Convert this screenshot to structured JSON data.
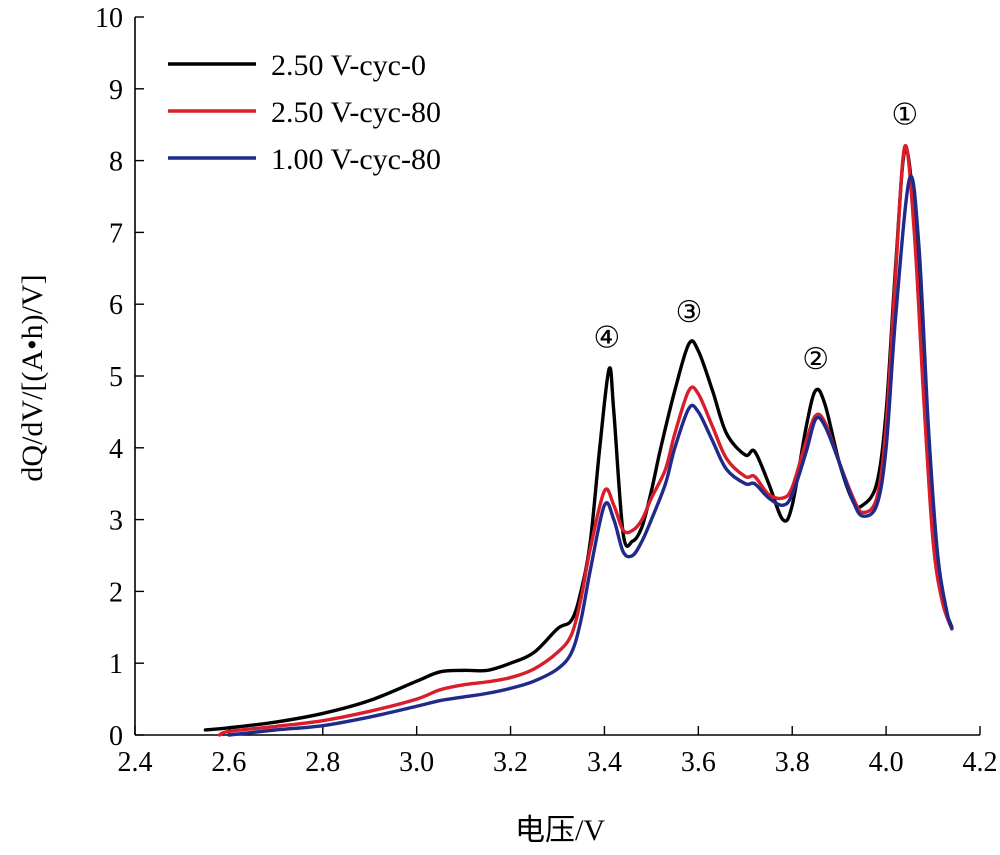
{
  "chart_data": {
    "type": "line",
    "title": "",
    "xlabel": "电压/V",
    "ylabel": "dQ/dV/[(A•h)/V]",
    "xlim": [
      2.4,
      4.2
    ],
    "ylim": [
      0,
      10
    ],
    "x_ticks": [
      "2.4",
      "2.6",
      "2.8",
      "3.0",
      "3.2",
      "3.4",
      "3.6",
      "3.8",
      "4.0",
      "4.2"
    ],
    "y_ticks": [
      "0",
      "1",
      "2",
      "3",
      "4",
      "5",
      "6",
      "7",
      "8",
      "9",
      "10"
    ],
    "grid": false,
    "legend_position": "top-left",
    "series": [
      {
        "name": "2.50 V-cyc-0",
        "color": "#000000",
        "points": [
          [
            2.55,
            0.07
          ],
          [
            2.6,
            0.1
          ],
          [
            2.7,
            0.18
          ],
          [
            2.8,
            0.3
          ],
          [
            2.9,
            0.48
          ],
          [
            3.0,
            0.75
          ],
          [
            3.05,
            0.88
          ],
          [
            3.1,
            0.9
          ],
          [
            3.15,
            0.9
          ],
          [
            3.2,
            1.0
          ],
          [
            3.25,
            1.15
          ],
          [
            3.3,
            1.48
          ],
          [
            3.33,
            1.6
          ],
          [
            3.35,
            2.0
          ],
          [
            3.37,
            2.7
          ],
          [
            3.39,
            4.0
          ],
          [
            3.41,
            5.1
          ],
          [
            3.42,
            4.5
          ],
          [
            3.44,
            2.8
          ],
          [
            3.46,
            2.7
          ],
          [
            3.48,
            2.9
          ],
          [
            3.5,
            3.4
          ],
          [
            3.52,
            4.0
          ],
          [
            3.55,
            4.8
          ],
          [
            3.58,
            5.45
          ],
          [
            3.6,
            5.35
          ],
          [
            3.63,
            4.8
          ],
          [
            3.66,
            4.2
          ],
          [
            3.7,
            3.9
          ],
          [
            3.72,
            3.95
          ],
          [
            3.75,
            3.5
          ],
          [
            3.78,
            3.0
          ],
          [
            3.8,
            3.2
          ],
          [
            3.83,
            4.3
          ],
          [
            3.85,
            4.8
          ],
          [
            3.87,
            4.6
          ],
          [
            3.9,
            3.8
          ],
          [
            3.93,
            3.25
          ],
          [
            3.95,
            3.2
          ],
          [
            3.98,
            3.5
          ],
          [
            4.0,
            4.5
          ],
          [
            4.02,
            6.5
          ],
          [
            4.04,
            8.15
          ],
          [
            4.06,
            7.2
          ],
          [
            4.08,
            4.8
          ],
          [
            4.1,
            2.8
          ],
          [
            4.12,
            1.9
          ],
          [
            4.14,
            1.5
          ]
        ]
      },
      {
        "name": "2.50 V-cyc-80",
        "color": "#d81e2b",
        "points": [
          [
            2.58,
            0.0
          ],
          [
            2.6,
            0.05
          ],
          [
            2.7,
            0.12
          ],
          [
            2.8,
            0.2
          ],
          [
            2.9,
            0.33
          ],
          [
            3.0,
            0.5
          ],
          [
            3.05,
            0.63
          ],
          [
            3.1,
            0.7
          ],
          [
            3.15,
            0.74
          ],
          [
            3.2,
            0.8
          ],
          [
            3.25,
            0.92
          ],
          [
            3.3,
            1.15
          ],
          [
            3.33,
            1.4
          ],
          [
            3.35,
            1.9
          ],
          [
            3.37,
            2.6
          ],
          [
            3.4,
            3.4
          ],
          [
            3.42,
            3.2
          ],
          [
            3.44,
            2.85
          ],
          [
            3.46,
            2.85
          ],
          [
            3.48,
            3.0
          ],
          [
            3.5,
            3.3
          ],
          [
            3.53,
            3.7
          ],
          [
            3.55,
            4.2
          ],
          [
            3.58,
            4.8
          ],
          [
            3.6,
            4.75
          ],
          [
            3.63,
            4.3
          ],
          [
            3.66,
            3.85
          ],
          [
            3.7,
            3.6
          ],
          [
            3.72,
            3.6
          ],
          [
            3.75,
            3.35
          ],
          [
            3.78,
            3.3
          ],
          [
            3.8,
            3.45
          ],
          [
            3.83,
            4.1
          ],
          [
            3.85,
            4.45
          ],
          [
            3.87,
            4.35
          ],
          [
            3.9,
            3.8
          ],
          [
            3.93,
            3.3
          ],
          [
            3.95,
            3.1
          ],
          [
            3.98,
            3.3
          ],
          [
            4.0,
            4.3
          ],
          [
            4.02,
            6.4
          ],
          [
            4.04,
            8.2
          ],
          [
            4.06,
            7.0
          ],
          [
            4.08,
            4.7
          ],
          [
            4.1,
            2.7
          ],
          [
            4.12,
            1.85
          ],
          [
            4.14,
            1.48
          ]
        ]
      },
      {
        "name": "1.00 V-cyc-80",
        "color": "#1f2a8a",
        "points": [
          [
            2.6,
            0.0
          ],
          [
            2.7,
            0.07
          ],
          [
            2.8,
            0.13
          ],
          [
            2.9,
            0.25
          ],
          [
            3.0,
            0.4
          ],
          [
            3.05,
            0.48
          ],
          [
            3.1,
            0.53
          ],
          [
            3.15,
            0.58
          ],
          [
            3.2,
            0.65
          ],
          [
            3.25,
            0.75
          ],
          [
            3.3,
            0.92
          ],
          [
            3.33,
            1.15
          ],
          [
            3.35,
            1.6
          ],
          [
            3.37,
            2.3
          ],
          [
            3.4,
            3.2
          ],
          [
            3.42,
            3.0
          ],
          [
            3.44,
            2.55
          ],
          [
            3.46,
            2.5
          ],
          [
            3.48,
            2.7
          ],
          [
            3.5,
            3.0
          ],
          [
            3.53,
            3.5
          ],
          [
            3.55,
            4.0
          ],
          [
            3.58,
            4.55
          ],
          [
            3.6,
            4.5
          ],
          [
            3.63,
            4.1
          ],
          [
            3.66,
            3.7
          ],
          [
            3.7,
            3.5
          ],
          [
            3.72,
            3.5
          ],
          [
            3.75,
            3.3
          ],
          [
            3.78,
            3.2
          ],
          [
            3.8,
            3.35
          ],
          [
            3.83,
            3.95
          ],
          [
            3.85,
            4.4
          ],
          [
            3.87,
            4.3
          ],
          [
            3.9,
            3.8
          ],
          [
            3.93,
            3.25
          ],
          [
            3.95,
            3.05
          ],
          [
            3.98,
            3.2
          ],
          [
            4.0,
            4.0
          ],
          [
            4.02,
            5.8
          ],
          [
            4.05,
            7.75
          ],
          [
            4.07,
            6.8
          ],
          [
            4.09,
            4.3
          ],
          [
            4.11,
            2.5
          ],
          [
            4.13,
            1.7
          ],
          [
            4.14,
            1.48
          ]
        ]
      }
    ],
    "annotations": [
      {
        "label": "①",
        "x": 4.04,
        "y": 8.5
      },
      {
        "label": "②",
        "x": 3.85,
        "y": 5.1
      },
      {
        "label": "③",
        "x": 3.58,
        "y": 5.75
      },
      {
        "label": "④",
        "x": 3.405,
        "y": 5.4
      }
    ]
  }
}
